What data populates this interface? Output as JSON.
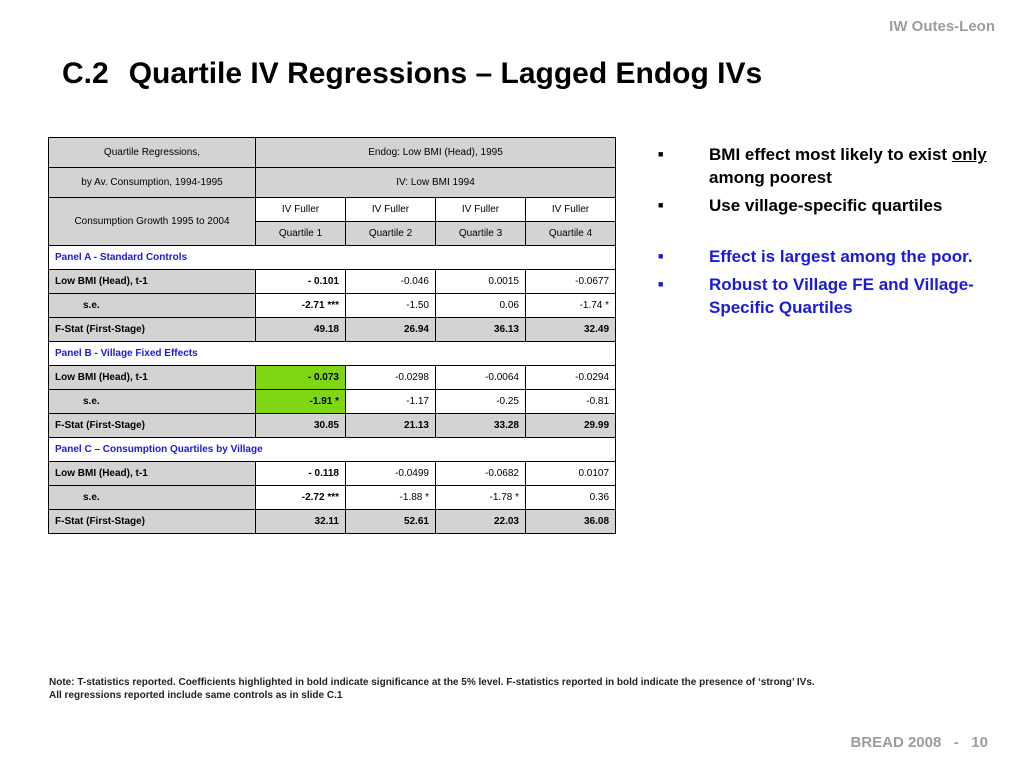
{
  "header": {
    "credit": "IW Outes-Leon",
    "title_num": "C.2",
    "title_text": "Quartile IV Regressions – Lagged Endog IVs"
  },
  "table": {
    "h1_left": "Quartile Regressions,",
    "h1_right": "Endog: Low BMI (Head), 1995",
    "h2_left": "by Av. Consumption, 1994-1995",
    "h2_right": "IV: Low BMI 1994",
    "h3_left": "Consumption Growth 1995 to 2004",
    "methods": [
      "IV Fuller",
      "IV Fuller",
      "IV Fuller",
      "IV Fuller"
    ],
    "quartiles": [
      "Quartile 1",
      "Quartile 2",
      "Quartile 3",
      "Quartile 4"
    ],
    "panels": [
      {
        "name": "Panel A - Standard Controls",
        "coef_label": "Low BMI (Head), t-1",
        "coefs": [
          "- 0.101",
          "-0.046",
          "0.0015",
          "-0.0677"
        ],
        "se_label": "s.e.",
        "ses": [
          "-2.71 ***",
          "-1.50",
          "0.06",
          "-1.74 *"
        ],
        "f_label": "F-Stat (First-Stage)",
        "fstats": [
          "49.18",
          "26.94",
          "36.13",
          "32.49"
        ]
      },
      {
        "name": "Panel B - Village Fixed Effects",
        "coef_label": "Low BMI (Head), t-1",
        "coefs": [
          "- 0.073",
          "-0.0298",
          "-0.0064",
          "-0.0294"
        ],
        "se_label": "s.e.",
        "ses": [
          "-1.91 *",
          "-1.17",
          "-0.25",
          "-0.81"
        ],
        "f_label": "F-Stat (First-Stage)",
        "fstats": [
          "30.85",
          "21.13",
          "33.28",
          "29.99"
        ]
      },
      {
        "name": "Panel C – Consumption Quartiles by Village",
        "coef_label": "Low BMI (Head), t-1",
        "coefs": [
          "- 0.118",
          "-0.0499",
          "-0.0682",
          "0.0107"
        ],
        "se_label": "s.e.",
        "ses": [
          "-2.72 ***",
          "-1.88 *",
          "-1.78 *",
          "0.36"
        ],
        "f_label": "F-Stat (First-Stage)",
        "fstats": [
          "32.11",
          "52.61",
          "22.03",
          "36.08"
        ]
      }
    ]
  },
  "bullets": {
    "b1_start": "BMI effect most likely to exist",
    "b1_only": "only",
    "b1_end": " among poorest",
    "b2": "Use village-specific quartiles",
    "b3": "Effect is largest among the poor.",
    "b4": "Robust to Village FE and Village-Specific Quartiles"
  },
  "note": {
    "line1": "Note:  T-statistics reported.  Coefficients highlighted in bold indicate significance at the 5% level. F-statistics reported in bold indicate the presence of ‘strong’ IVs.",
    "line2": "All regressions reported include same controls as in slide C.1"
  },
  "footer": "BREAD 2008   -   10",
  "colors": {
    "highlight": "#7fd614",
    "panel_blue": "#1a1adc",
    "header_grey": "#d3d3d3"
  }
}
